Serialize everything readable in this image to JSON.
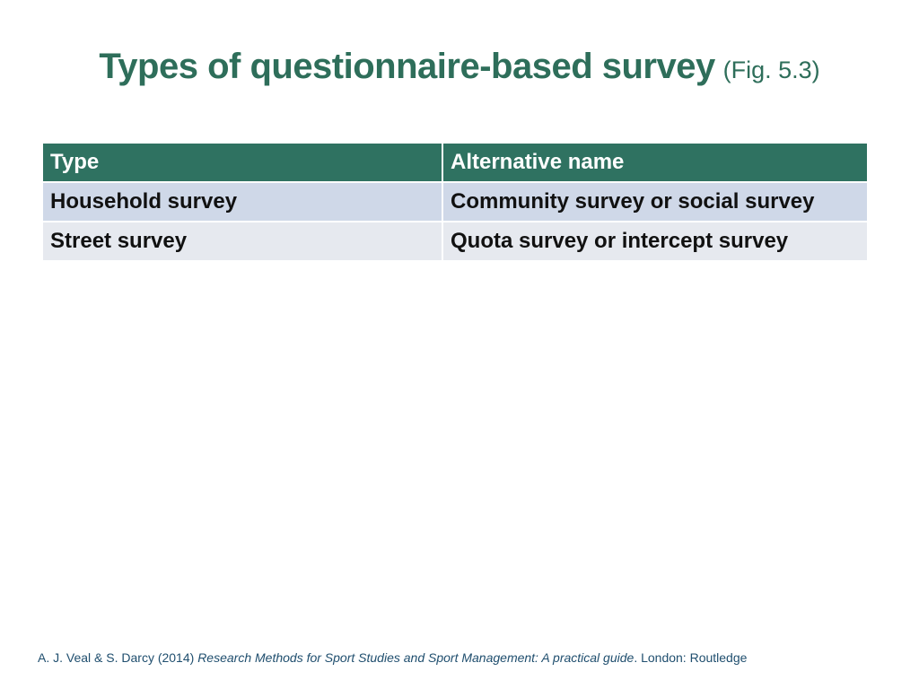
{
  "title": {
    "main": "Types of questionnaire-based survey",
    "sub": "(Fig. 5.3)"
  },
  "table": {
    "headers": [
      "Type",
      "Alternative name"
    ],
    "rows": [
      [
        "Household survey",
        "Community survey or social survey"
      ],
      [
        "Street survey",
        "Quota survey or intercept survey"
      ]
    ]
  },
  "footer": {
    "authors": "A. J. Veal & S. Darcy (2014) ",
    "book_title": "Research Methods for Sport Studies and Sport Management: A practical guide",
    "publisher": ". London: Routledge"
  },
  "colors": {
    "title": "#2e6e5a",
    "header_bg": "#2f7261",
    "row1_bg": "#cfd8e8",
    "row2_bg": "#e6e9ef",
    "footer_text": "#1f4e6e"
  }
}
